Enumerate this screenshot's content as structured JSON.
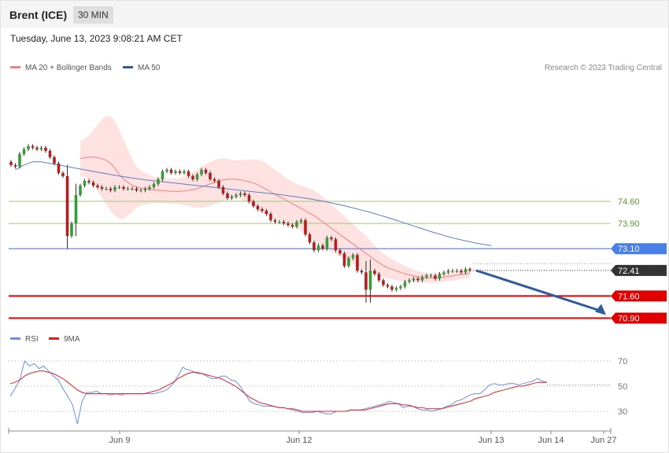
{
  "header": {
    "instrument": "Brent (ICE)",
    "timeframe": "30 MIN"
  },
  "datetime": "Tuesday, June 13, 2023 9:08:21 AM CET",
  "copyright": "Research © 2023 Trading Central",
  "colors": {
    "bullish_candle": "#3a9a3a",
    "bearish_candle": "#b02020",
    "ma20": "#f08080",
    "bollinger_fill": "#fdd8d8",
    "ma50": "#5b7fc6",
    "rsi": "#6b8ee6",
    "rsi_9ma": "#e02020",
    "resistance": "#9ccc7a",
    "pivot": "#4a7fe8",
    "support": "#e00000",
    "last_price": "#333333",
    "arrow": "#2e5c9e"
  },
  "chart_data": [
    {
      "type": "candlestick",
      "legend": [
        {
          "label": "MA 20 + Bollinger Bands",
          "color": "#f08080"
        },
        {
          "label": "MA 50",
          "color": "#2e5c9e"
        }
      ],
      "x_labels": [
        "Jun 9",
        "Jun 12",
        "Jun 13",
        "Jun 14",
        "Jun 27"
      ],
      "ylim": [
        70.7,
        76.4
      ],
      "levels": [
        {
          "value": 74.6,
          "label": "74.60",
          "kind": "resistance"
        },
        {
          "value": 73.9,
          "label": "73.90",
          "kind": "resistance"
        },
        {
          "value": 73.1,
          "label": "73.10",
          "kind": "pivot"
        },
        {
          "value": 72.41,
          "label": "72.41",
          "kind": "last"
        },
        {
          "value": 71.6,
          "label": "71.60",
          "kind": "support"
        },
        {
          "value": 70.9,
          "label": "70.90",
          "kind": "support"
        }
      ],
      "close": [
        75.75,
        75.7,
        76.1,
        76.25,
        76.35,
        76.3,
        76.25,
        76.3,
        76.2,
        76.0,
        75.8,
        75.5,
        75.4,
        73.5,
        73.9,
        74.8,
        75.1,
        75.25,
        75.2,
        75.1,
        75.05,
        75.0,
        75.0,
        74.95,
        75.05,
        75.05,
        75.0,
        75.0,
        75.0,
        74.95,
        74.95,
        75.0,
        75.05,
        75.15,
        75.3,
        75.55,
        75.6,
        75.5,
        75.55,
        75.5,
        75.55,
        75.4,
        75.3,
        75.45,
        75.6,
        75.5,
        75.3,
        75.25,
        75.05,
        74.85,
        74.7,
        74.75,
        74.8,
        74.85,
        74.8,
        74.6,
        74.45,
        74.35,
        74.3,
        74.2,
        74.0,
        73.95,
        73.95,
        73.9,
        73.85,
        73.8,
        73.95,
        74.0,
        73.55,
        73.3,
        73.05,
        73.2,
        73.1,
        73.45,
        73.4,
        73.05,
        72.95,
        72.55,
        72.8,
        72.9,
        72.4,
        72.35,
        71.8,
        72.4,
        72.3,
        72.1,
        71.95,
        71.9,
        71.8,
        71.85,
        71.9,
        72.05,
        72.1,
        72.15,
        72.1,
        72.2,
        72.25,
        72.25,
        72.15,
        72.3,
        72.35,
        72.4,
        72.4,
        72.4,
        72.35,
        72.45,
        72.41
      ],
      "ma20": [
        75.95,
        75.98,
        76.0,
        76.0,
        75.98,
        75.95,
        75.9,
        75.8,
        75.65,
        75.45,
        75.3,
        75.2,
        75.1,
        75.05,
        75.02,
        75.0,
        74.98,
        74.96,
        74.95,
        74.94,
        74.93,
        74.92,
        74.92,
        74.92,
        74.93,
        74.95,
        74.97,
        75.0,
        75.05,
        75.1,
        75.15,
        75.2,
        75.25,
        75.28,
        75.3,
        75.3,
        75.3,
        75.28,
        75.25,
        75.22,
        75.18,
        75.12,
        75.05,
        74.98,
        74.9,
        74.82,
        74.75,
        74.68,
        74.6,
        74.52,
        74.45,
        74.38,
        74.3,
        74.22,
        74.15,
        74.05,
        73.95,
        73.85,
        73.75,
        73.65,
        73.55,
        73.45,
        73.35,
        73.25,
        73.15,
        73.05,
        72.95,
        72.85,
        72.75,
        72.65,
        72.57,
        72.5,
        72.45,
        72.4,
        72.35,
        72.3,
        72.27,
        72.24,
        72.21,
        72.19,
        72.18,
        72.17,
        72.17,
        72.18,
        72.2,
        72.22,
        72.24,
        72.26,
        72.28,
        72.3,
        72.32
      ],
      "ma20_start": 16,
      "bb_width": [
        0.55,
        0.6,
        0.7,
        0.85,
        1.05,
        1.25,
        1.4,
        1.5,
        1.5,
        1.4,
        1.25,
        1.05,
        0.85,
        0.65,
        0.55,
        0.5,
        0.45,
        0.42,
        0.4,
        0.4,
        0.4,
        0.4,
        0.4,
        0.42,
        0.45,
        0.5,
        0.55,
        0.6,
        0.65,
        0.68,
        0.7,
        0.7,
        0.7,
        0.68,
        0.65,
        0.6,
        0.6,
        0.62,
        0.66,
        0.7,
        0.75,
        0.8,
        0.82,
        0.82,
        0.8,
        0.78,
        0.75,
        0.72,
        0.7,
        0.7,
        0.7,
        0.72,
        0.75,
        0.78,
        0.8,
        0.8,
        0.8,
        0.78,
        0.75,
        0.72,
        0.7,
        0.68,
        0.65,
        0.62,
        0.6,
        0.58,
        0.55,
        0.5,
        0.45,
        0.4,
        0.38,
        0.35,
        0.32,
        0.3,
        0.28,
        0.25,
        0.22,
        0.2,
        0.18,
        0.16,
        0.15,
        0.15,
        0.15,
        0.15,
        0.15,
        0.15,
        0.15,
        0.15,
        0.15,
        0.15,
        0.15
      ],
      "ma50": [
        75.6,
        75.75,
        75.85,
        75.85,
        75.8,
        75.75,
        75.7,
        75.65,
        75.6,
        75.55,
        75.5,
        75.45,
        75.4,
        75.36,
        75.32,
        75.28,
        75.25,
        75.22,
        75.19,
        75.16,
        75.13,
        75.1,
        75.07,
        75.04,
        75.01,
        74.98,
        74.95,
        74.92,
        74.89,
        74.86,
        74.83,
        74.8,
        74.76,
        74.72,
        74.68,
        74.63,
        74.58,
        74.52,
        74.46,
        74.39,
        74.32,
        74.25,
        74.17,
        74.09,
        74.0,
        73.91,
        73.82,
        73.73,
        73.64,
        73.56,
        73.48,
        73.41,
        73.35,
        73.29,
        73.24,
        73.2
      ],
      "ma50_start": 1,
      "ma50_step": 2
    },
    {
      "type": "line",
      "legend": [
        {
          "label": "RSI",
          "color": "#6b8ee6"
        },
        {
          "label": "9MA",
          "color": "#e02020"
        }
      ],
      "y_ticks": [
        70,
        50,
        30
      ],
      "ylim": [
        15,
        85
      ],
      "rsi": [
        42,
        48,
        55,
        70,
        66,
        68,
        64,
        66,
        62,
        58,
        55,
        48,
        42,
        35,
        20,
        38,
        45,
        45,
        46,
        44,
        44,
        43,
        44,
        43,
        44,
        44,
        44,
        44,
        44,
        44,
        44,
        45,
        46,
        48,
        52,
        58,
        65,
        63,
        62,
        60,
        60,
        58,
        56,
        56,
        58,
        58,
        55,
        54,
        50,
        44,
        38,
        36,
        35,
        34,
        34,
        34,
        33,
        33,
        32,
        31,
        30,
        29,
        29,
        29,
        30,
        29,
        28,
        28,
        30,
        30,
        30,
        31,
        31,
        31,
        32,
        33,
        34,
        35,
        36,
        38,
        37,
        36,
        33,
        34,
        34,
        32,
        31,
        31,
        30,
        31,
        32,
        34,
        35,
        38,
        39,
        41,
        43,
        44,
        44,
        47,
        51,
        52,
        51,
        51,
        52,
        52,
        51,
        52,
        53,
        54,
        56,
        54,
        53
      ],
      "ma9": [
        52,
        53,
        55,
        58,
        60,
        61,
        62,
        62,
        61,
        60,
        58,
        56,
        53,
        50,
        47,
        45,
        44,
        44,
        44,
        44,
        44,
        44,
        44,
        44,
        44,
        44,
        44,
        44,
        44,
        45,
        46,
        47,
        49,
        51,
        53,
        56,
        58,
        60,
        61,
        61,
        60,
        59,
        58,
        57,
        56,
        54,
        52,
        50,
        47,
        44,
        41,
        39,
        37,
        36,
        35,
        34,
        33,
        33,
        32,
        32,
        31,
        30,
        30,
        30,
        30,
        30,
        30,
        30,
        30,
        30,
        30,
        31,
        31,
        31,
        31,
        32,
        33,
        34,
        35,
        36,
        36,
        36,
        35,
        35,
        34,
        33,
        33,
        32,
        32,
        32,
        32,
        33,
        34,
        35,
        36,
        37,
        38,
        40,
        41,
        42,
        43,
        45,
        46,
        47,
        48,
        49,
        50,
        50,
        51,
        52,
        53,
        53,
        53
      ]
    }
  ]
}
